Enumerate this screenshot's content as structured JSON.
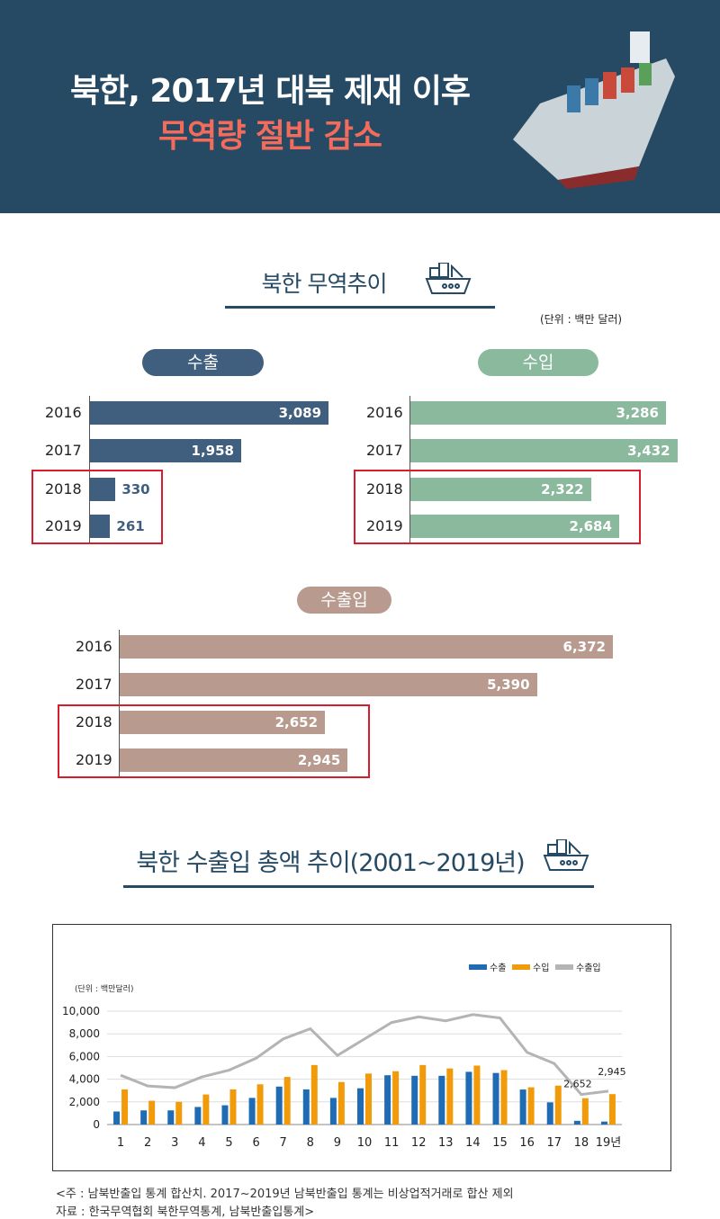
{
  "header": {
    "title_line1": "북한, 2017년 대북 제재 이후",
    "title_line2": "무역량 절반 감소",
    "title_line2_color": "#f26b5b",
    "bg": "#264a63"
  },
  "section1": {
    "title": "북한 무역추이",
    "icon": "cargo-ship-icon",
    "unit": "(단위 : 백만 달러)"
  },
  "exports": {
    "label": "수출",
    "color": "#405f7e",
    "rows": [
      {
        "year": "2016",
        "value": 3089,
        "label": "3,089"
      },
      {
        "year": "2017",
        "value": 1958,
        "label": "1,958"
      },
      {
        "year": "2018",
        "value": 330,
        "label": "330"
      },
      {
        "year": "2019",
        "value": 261,
        "label": "261"
      }
    ]
  },
  "imports": {
    "label": "수입",
    "color": "#8ab99e",
    "rows": [
      {
        "year": "2016",
        "value": 3286,
        "label": "3,286"
      },
      {
        "year": "2017",
        "value": 3432,
        "label": "3,432"
      },
      {
        "year": "2018",
        "value": 2322,
        "label": "2,322"
      },
      {
        "year": "2019",
        "value": 2684,
        "label": "2,684"
      }
    ]
  },
  "total": {
    "label": "수출입",
    "color": "#b89a8f",
    "rows": [
      {
        "year": "2016",
        "value": 6372,
        "label": "6,372"
      },
      {
        "year": "2017",
        "value": 5390,
        "label": "5,390"
      },
      {
        "year": "2018",
        "value": 2652,
        "label": "2,652"
      },
      {
        "year": "2019",
        "value": 2945,
        "label": "2,945"
      }
    ]
  },
  "section2": {
    "title": "북한 수출입 총액 추이(2001~2019년)",
    "icon": "cargo-ship-icon"
  },
  "chart_data": {
    "type": "bar",
    "unit_label": "(단위 : 백만달러)",
    "categories": [
      "1",
      "2",
      "3",
      "4",
      "5",
      "6",
      "7",
      "8",
      "9",
      "10",
      "11",
      "12",
      "13",
      "14",
      "15",
      "16",
      "17",
      "18",
      "19년"
    ],
    "ylim": [
      0,
      10000
    ],
    "yticks": [
      "0",
      "2,000",
      "4,000",
      "6,000",
      "8,000",
      "10,000"
    ],
    "grid": true,
    "legend": "top-right",
    "series": [
      {
        "name": "수출",
        "kind": "bar",
        "color": "#1f6cb5",
        "values": [
          1150,
          1250,
          1250,
          1550,
          1700,
          2350,
          3350,
          3100,
          2350,
          3200,
          4350,
          4300,
          4300,
          4650,
          4550,
          3089,
          1958,
          330,
          261
        ]
      },
      {
        "name": "수입",
        "kind": "bar",
        "color": "#f29b0a",
        "values": [
          3100,
          2100,
          2000,
          2650,
          3100,
          3550,
          4200,
          5250,
          3750,
          4500,
          4700,
          5250,
          4950,
          5200,
          4800,
          3286,
          3432,
          2322,
          2684
        ]
      },
      {
        "name": "수출입",
        "kind": "line",
        "color": "#b4b4b4",
        "values": [
          4350,
          3400,
          3250,
          4200,
          4800,
          5850,
          7550,
          8450,
          6100,
          7550,
          9000,
          9500,
          9150,
          9700,
          9400,
          6372,
          5390,
          2652,
          2945
        ]
      }
    ],
    "annotations": [
      {
        "label": "2,652"
      },
      {
        "label": "2,945"
      }
    ]
  },
  "notes": {
    "line1": "<주 : 남북반출입 통계 합산치. 2017~2019년 남북반출입 통계는 비상업적거래로 합산 제외",
    "line2": "자료 : 한국무역협회 북한무역통계, 남북반출입통계>"
  }
}
